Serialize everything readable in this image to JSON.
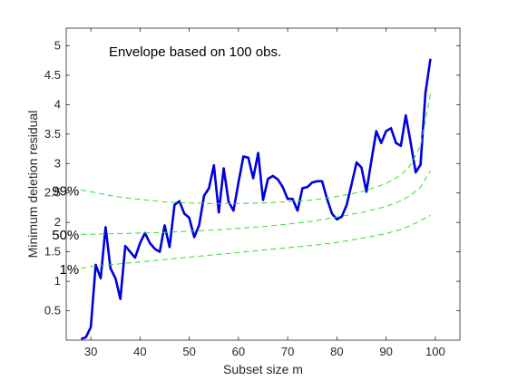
{
  "chart_data": {
    "type": "line",
    "title": "",
    "annotation": "Envelope based on 100 obs.",
    "xlabel": "Subset size m",
    "ylabel": "Minimum deletion residual",
    "xlim": [
      25,
      105
    ],
    "ylim": [
      0,
      5.3
    ],
    "xticks": [
      30,
      40,
      50,
      60,
      70,
      80,
      90,
      100
    ],
    "yticks": [
      0.5,
      1,
      1.5,
      2,
      2.5,
      3,
      3.5,
      4,
      4.5,
      5
    ],
    "grid": false,
    "box": true,
    "series": [
      {
        "name": "",
        "kind": "solid",
        "color": "#0000dd",
        "x": [
          28,
          29,
          30,
          31,
          32,
          33,
          34,
          35,
          36,
          37,
          38,
          39,
          40,
          41,
          42,
          43,
          44,
          45,
          46,
          47,
          48,
          49,
          50,
          51,
          52,
          53,
          54,
          55,
          56,
          57,
          58,
          59,
          60,
          61,
          62,
          63,
          64,
          65,
          66,
          67,
          68,
          69,
          70,
          71,
          72,
          73,
          74,
          75,
          76,
          77,
          78,
          79,
          80,
          81,
          82,
          83,
          84,
          85,
          86,
          87,
          88,
          89,
          90,
          91,
          92,
          93,
          94,
          95,
          96,
          97,
          98,
          99
        ],
        "y": [
          0.02,
          0.05,
          0.22,
          1.28,
          1.05,
          1.92,
          1.22,
          1.05,
          0.7,
          1.6,
          1.5,
          1.4,
          1.65,
          1.82,
          1.65,
          1.55,
          1.5,
          1.95,
          1.58,
          2.3,
          2.36,
          2.15,
          2.08,
          1.75,
          1.95,
          2.45,
          2.58,
          2.97,
          2.17,
          2.92,
          2.35,
          2.2,
          2.68,
          3.12,
          3.1,
          2.75,
          3.18,
          2.38,
          2.74,
          2.79,
          2.73,
          2.6,
          2.4,
          2.4,
          2.2,
          2.58,
          2.6,
          2.68,
          2.7,
          2.7,
          2.4,
          2.15,
          2.05,
          2.1,
          2.3,
          2.65,
          3.02,
          2.93,
          2.52,
          3.05,
          3.55,
          3.35,
          3.55,
          3.6,
          3.35,
          3.3,
          3.82,
          3.35,
          2.85,
          2.98,
          4.2,
          4.78
        ]
      },
      {
        "name": "99%",
        "kind": "envelope",
        "color": "#33dd33",
        "x": [
          28,
          30,
          35,
          40,
          45,
          50,
          55,
          60,
          65,
          70,
          75,
          80,
          85,
          90,
          93,
          95,
          97,
          99
        ],
        "y": [
          2.55,
          2.52,
          2.44,
          2.39,
          2.35,
          2.33,
          2.32,
          2.32,
          2.33,
          2.35,
          2.38,
          2.44,
          2.52,
          2.66,
          2.8,
          2.98,
          3.3,
          4.18
        ]
      },
      {
        "name": "50%",
        "kind": "envelope",
        "color": "#33dd33",
        "x": [
          28,
          30,
          35,
          40,
          45,
          50,
          55,
          60,
          65,
          70,
          75,
          80,
          85,
          90,
          93,
          95,
          97,
          99
        ],
        "y": [
          1.8,
          1.8,
          1.81,
          1.82,
          1.83,
          1.85,
          1.87,
          1.9,
          1.93,
          1.97,
          2.02,
          2.09,
          2.17,
          2.27,
          2.37,
          2.46,
          2.6,
          2.88
        ]
      },
      {
        "name": "1%",
        "kind": "envelope",
        "color": "#33dd33",
        "x": [
          28,
          30,
          35,
          40,
          45,
          50,
          55,
          60,
          65,
          70,
          75,
          80,
          85,
          90,
          93,
          95,
          97,
          99
        ],
        "y": [
          1.22,
          1.25,
          1.29,
          1.33,
          1.37,
          1.41,
          1.45,
          1.49,
          1.53,
          1.57,
          1.61,
          1.66,
          1.73,
          1.81,
          1.88,
          1.95,
          2.03,
          2.12
        ]
      }
    ],
    "band_labels": [
      {
        "text": "99%",
        "x": 28,
        "y": 2.55
      },
      {
        "text": "50%",
        "x": 28,
        "y": 1.8
      },
      {
        "text": "1%",
        "x": 28,
        "y": 1.22
      }
    ]
  }
}
